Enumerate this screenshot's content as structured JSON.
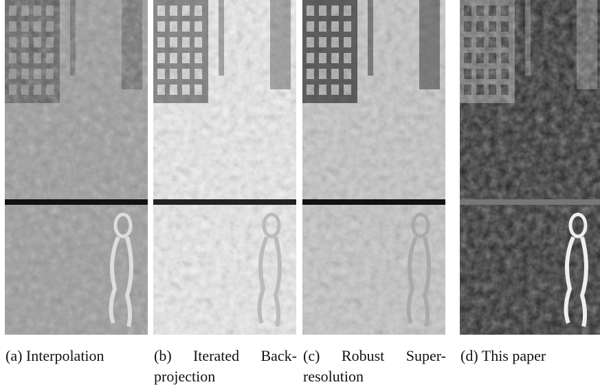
{
  "panels": [
    {
      "caption": "(a) Interpolation"
    },
    {
      "caption": "(b) Iterated Back-projection"
    },
    {
      "caption": "(c) Robust Super-resolution"
    },
    {
      "caption": "(d) This paper"
    }
  ]
}
